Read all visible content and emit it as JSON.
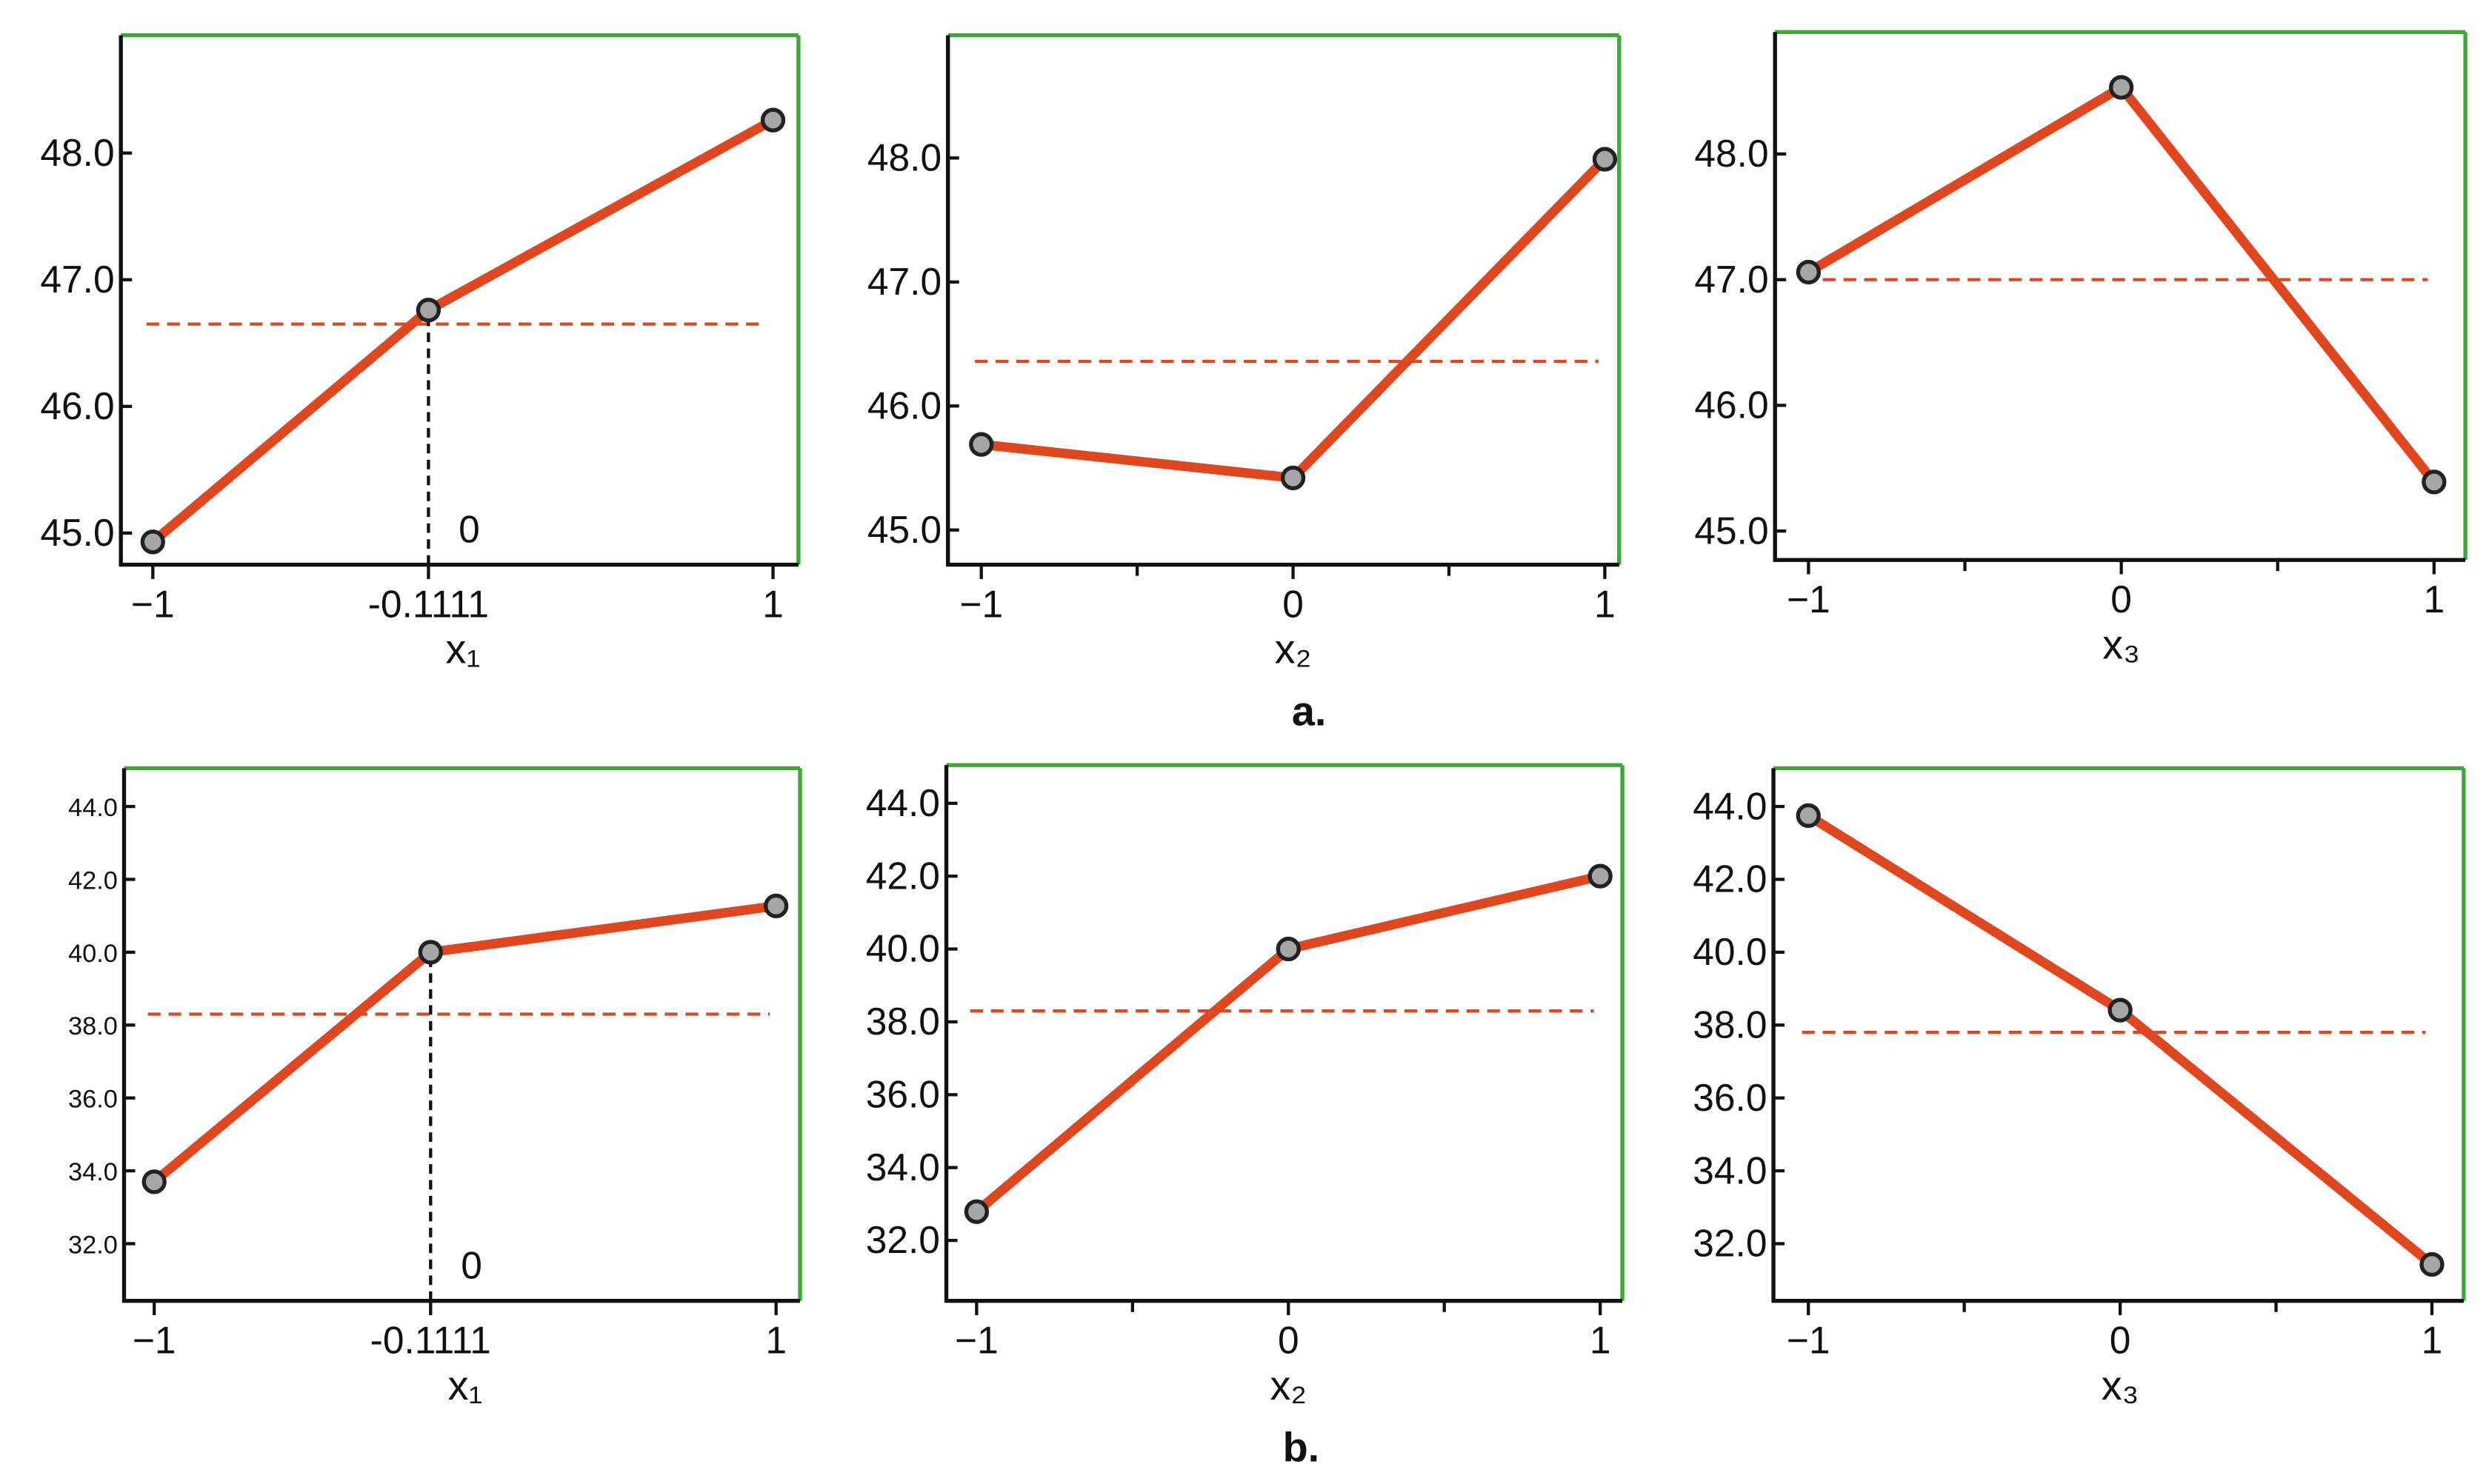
{
  "captions": [
    "a.",
    "b."
  ],
  "chart_data": [
    {
      "type": "line",
      "x": [
        -1,
        -0.1111,
        1
      ],
      "values": [
        44.93,
        46.76,
        48.26
      ],
      "color": "#e0471f",
      "marker_color": "#a6a6a6",
      "frame_color": "#3aa935",
      "xlabel": "x₁",
      "xlim": [
        -1.103,
        1.082
      ],
      "ylim": [
        44.75,
        48.93
      ],
      "xticks": [
        {
          "value": -1,
          "label": "−1"
        },
        -0.1111,
        1
      ],
      "minor_xticks": [],
      "yticks": [
        {
          "value": 45,
          "label": "45.0"
        },
        {
          "value": 46,
          "label": "46.0"
        },
        {
          "value": 47,
          "label": "47.0"
        },
        {
          "value": 48,
          "label": "48.0"
        }
      ],
      "mean_line": 46.65,
      "drop_line_at": 1,
      "annotations": [
        {
          "text": "0",
          "x": 0
        }
      ]
    },
    {
      "type": "line",
      "x": [
        -1,
        0,
        1
      ],
      "values": [
        45.69,
        45.42,
        47.99
      ],
      "color": "#e0471f",
      "marker_color": "#a6a6a6",
      "frame_color": "#3aa935",
      "xlabel": "x₂",
      "xlim": [
        -1.107,
        1.046
      ],
      "ylim": [
        44.72,
        48.99
      ],
      "xticks": [
        {
          "value": -1,
          "label": "−1"
        },
        0,
        1
      ],
      "minor_xticks": [
        -0.5,
        0.5
      ],
      "yticks": [
        {
          "value": 45,
          "label": "45.0"
        },
        {
          "value": 46,
          "label": "46.0"
        },
        {
          "value": 47,
          "label": "47.0"
        },
        {
          "value": 48,
          "label": "48.0"
        }
      ],
      "mean_line": 46.36
    },
    {
      "type": "line",
      "x": [
        -1,
        0,
        1
      ],
      "values": [
        47.06,
        48.53,
        45.39
      ],
      "color": "#e0471f",
      "marker_color": "#a6a6a6",
      "frame_color": "#3aa935",
      "xlabel": "x₃",
      "xlim": [
        -1.107,
        1.1
      ],
      "ylim": [
        44.77,
        48.97
      ],
      "xticks": [
        {
          "value": -1,
          "label": "−1"
        },
        0,
        1
      ],
      "minor_xticks": [
        -0.5,
        0.5
      ],
      "yticks": [
        {
          "value": 45,
          "label": "45.0"
        },
        {
          "value": 46,
          "label": "46.0"
        },
        {
          "value": 47,
          "label": "47.0"
        },
        {
          "value": 48,
          "label": "48.0"
        }
      ],
      "mean_line": 47.0
    },
    {
      "type": "line",
      "x": [
        -1,
        -0.1111,
        1
      ],
      "values": [
        33.7,
        40.0,
        41.27
      ],
      "color": "#e0471f",
      "marker_color": "#a6a6a6",
      "frame_color": "#3aa935",
      "xlabel": "x₁",
      "xlim": [
        -1.097,
        1.077
      ],
      "ylim": [
        30.43,
        45.05
      ],
      "xticks": [
        {
          "value": -1,
          "label": "−1"
        },
        -0.1111,
        1
      ],
      "minor_xticks": [],
      "yticks": [
        {
          "value": 32,
          "label": "32.0"
        },
        {
          "value": 34,
          "label": "34.0"
        },
        {
          "value": 36,
          "label": "36.0"
        },
        {
          "value": 38,
          "label": "38.0"
        },
        {
          "value": 40,
          "label": "40.0"
        },
        {
          "value": 42,
          "label": "42.0"
        },
        {
          "value": 44,
          "label": "44.0"
        }
      ],
      "mean_line": 38.3,
      "drop_line_at": 1,
      "annotations": [
        {
          "text": "0",
          "x": 0
        }
      ]
    },
    {
      "type": "line",
      "x": [
        -1,
        0,
        1
      ],
      "values": [
        32.79,
        40.0,
        42.0
      ],
      "color": "#e0471f",
      "marker_color": "#a6a6a6",
      "frame_color": "#3aa935",
      "xlabel": "x₂",
      "xlim": [
        -1.097,
        1.071
      ],
      "ylim": [
        30.34,
        45.05
      ],
      "xticks": [
        {
          "value": -1,
          "label": "−1"
        },
        0,
        1
      ],
      "minor_xticks": [
        -0.5,
        0.5
      ],
      "yticks": [
        {
          "value": 32,
          "label": "32.0"
        },
        {
          "value": 34,
          "label": "34.0"
        },
        {
          "value": 36,
          "label": "36.0"
        },
        {
          "value": 38,
          "label": "38.0"
        },
        {
          "value": 40,
          "label": "40.0"
        },
        {
          "value": 42,
          "label": "42.0"
        },
        {
          "value": 44,
          "label": "44.0"
        }
      ],
      "mean_line": 38.3
    },
    {
      "type": "line",
      "x": [
        -1,
        0,
        1
      ],
      "values": [
        43.75,
        38.41,
        31.43
      ],
      "color": "#e0471f",
      "marker_color": "#a6a6a6",
      "frame_color": "#3aa935",
      "xlabel": "x₃",
      "xlim": [
        -1.112,
        1.102
      ],
      "ylim": [
        30.43,
        45.05
      ],
      "xticks": [
        {
          "value": -1,
          "label": "−1"
        },
        0,
        1
      ],
      "minor_xticks": [
        -0.5,
        0.5
      ],
      "yticks": [
        {
          "value": 32,
          "label": "32.0"
        },
        {
          "value": 34,
          "label": "34.0"
        },
        {
          "value": 36,
          "label": "36.0"
        },
        {
          "value": 38,
          "label": "38.0"
        },
        {
          "value": 40,
          "label": "40.0"
        },
        {
          "value": 42,
          "label": "42.0"
        },
        {
          "value": 44,
          "label": "44.0"
        }
      ],
      "mean_line": 37.8
    }
  ]
}
